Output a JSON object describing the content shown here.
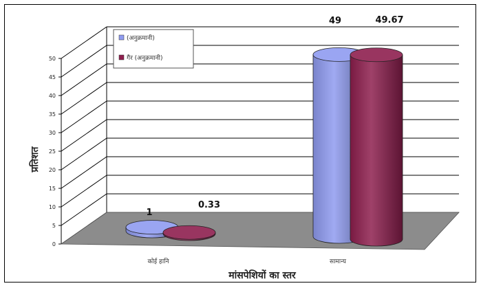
{
  "chart_data": {
    "type": "bar",
    "style": "3d-cylinder",
    "categories": [
      "कोई हानि",
      "सामान्य"
    ],
    "series": [
      {
        "name": "(अनुक्रमानी)",
        "values": [
          1,
          49
        ],
        "color": "#8f9bf0"
      },
      {
        "name": "गैर (अनुक्रमानी)",
        "values": [
          0.33,
          49.67
        ],
        "color": "#8e1f4e"
      }
    ],
    "data_labels": [
      "1",
      "0.33",
      "49",
      "49.67"
    ],
    "title": "",
    "xlabel": "मांसपेशियों का स्तर",
    "ylabel": "प्रतिशत",
    "ylim": [
      0,
      50
    ],
    "yticks": [
      0,
      5,
      10,
      15,
      20,
      25,
      30,
      35,
      40,
      45,
      50
    ],
    "grid": true,
    "legend_position": "top-left",
    "floor_color": "#8c8c8c"
  }
}
